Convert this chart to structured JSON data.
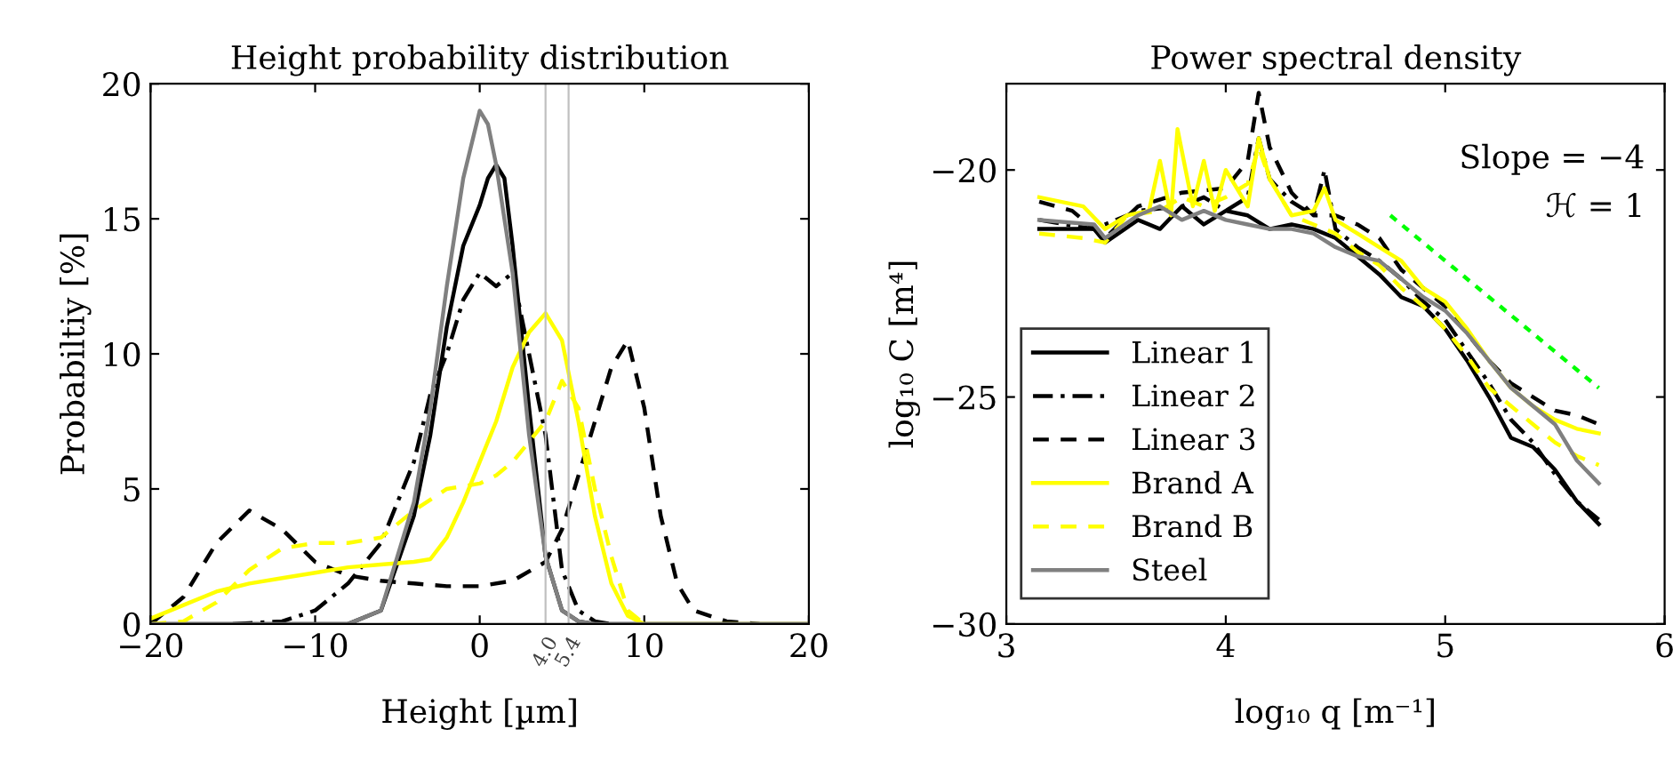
{
  "chart_data": [
    {
      "type": "line",
      "title": "Height probability distribution",
      "xlabel": "Height [µm]",
      "ylabel": "Probabiltiy [%]",
      "xlim": [
        -20,
        20
      ],
      "xticks": [
        {
          "value": -20,
          "label": "−20"
        },
        {
          "value": -10,
          "label": "−10"
        },
        0,
        10,
        20
      ],
      "ylim": [
        0,
        20
      ],
      "yticks": [
        0,
        5,
        10,
        15,
        20
      ],
      "grid": false,
      "legend": false,
      "ref_lines": [
        {
          "axis": "x",
          "value": 4.0,
          "label": "4.0",
          "color": "#c0c0c0"
        },
        {
          "axis": "x",
          "value": 5.4,
          "label": "5.4",
          "color": "#c0c0c0"
        }
      ],
      "series": [
        {
          "color": "#000000",
          "line_style": "solid",
          "x": [
            -20,
            -8,
            -6,
            -4,
            -3,
            -2,
            -1,
            0,
            0.5,
            1,
            1.5,
            2,
            3,
            4,
            5,
            6,
            7,
            20
          ],
          "values": [
            0,
            0,
            0.5,
            4,
            7,
            11,
            14,
            15.5,
            16.5,
            17,
            16.5,
            14,
            8,
            2.5,
            0.5,
            0.1,
            0,
            0
          ]
        },
        {
          "color": "#000000",
          "line_style": "dashdot",
          "x": [
            -15,
            -12,
            -10,
            -8,
            -6,
            -4,
            -3,
            -2,
            -1,
            0,
            1,
            2,
            3,
            4,
            5,
            6,
            7,
            8
          ],
          "values": [
            0,
            0.1,
            0.5,
            1.5,
            3,
            6,
            8.5,
            10,
            12,
            13,
            12.5,
            13,
            10,
            7,
            2,
            0.5,
            0.1,
            0
          ]
        },
        {
          "color": "#000000",
          "line_style": "dashed",
          "x": [
            -20,
            -18,
            -16,
            -14,
            -12,
            -10,
            -8,
            -6,
            -4,
            -2,
            0,
            2,
            4,
            5,
            6,
            7,
            8,
            9,
            10,
            11,
            12,
            13,
            15,
            17
          ],
          "values": [
            0,
            1,
            3,
            4.2,
            3.5,
            2.3,
            1.8,
            1.6,
            1.5,
            1.4,
            1.4,
            1.6,
            2.3,
            3.5,
            5.5,
            7.5,
            9.5,
            10.5,
            8,
            4,
            1.5,
            0.5,
            0.1,
            0
          ]
        },
        {
          "color": "#ffff00",
          "line_style": "solid",
          "x": [
            -20,
            -18,
            -16,
            -14,
            -12,
            -10,
            -8,
            -6,
            -4,
            -3,
            -2,
            -1,
            0,
            1,
            2,
            3,
            4,
            5,
            6,
            7,
            8,
            9,
            10,
            20
          ],
          "values": [
            0.2,
            0.7,
            1.2,
            1.5,
            1.7,
            1.9,
            2.1,
            2.2,
            2.3,
            2.4,
            3.2,
            4.5,
            6,
            7.5,
            9.5,
            10.8,
            11.5,
            10.5,
            7.5,
            4,
            1.5,
            0.3,
            0,
            0
          ]
        },
        {
          "color": "#ffff00",
          "line_style": "dashed",
          "x": [
            -20,
            -18,
            -16,
            -14,
            -12,
            -10,
            -8,
            -6,
            -4,
            -2,
            0,
            1,
            2,
            4,
            5,
            6,
            7,
            8,
            9,
            10
          ],
          "values": [
            0,
            0.1,
            0.8,
            2,
            2.8,
            3,
            3,
            3.2,
            4.2,
            5,
            5.2,
            5.5,
            6,
            7.5,
            9,
            8,
            5,
            2.5,
            0.5,
            0
          ]
        },
        {
          "color": "#808080",
          "line_style": "solid",
          "x": [
            -20,
            -8,
            -6,
            -4,
            -3,
            -2,
            -1,
            0,
            0.5,
            1,
            2,
            3,
            4,
            5,
            6,
            7,
            20
          ],
          "values": [
            0,
            0,
            0.5,
            4.5,
            8,
            12.5,
            16.5,
            19,
            18.5,
            17,
            13,
            7,
            2.5,
            0.5,
            0.1,
            0,
            0
          ]
        }
      ]
    },
    {
      "type": "line",
      "title": "Power spectral density",
      "xlabel": "log₁₀ q [m⁻¹]",
      "ylabel": "log₁₀ C [m⁴]",
      "xlim": [
        3,
        6
      ],
      "xticks": [
        3,
        4,
        5,
        6
      ],
      "ylim": [
        -30,
        -18.1
      ],
      "yticks": [
        {
          "value": -30,
          "label": "−30"
        },
        {
          "value": -25,
          "label": "−25"
        },
        {
          "value": -20,
          "label": "−20"
        }
      ],
      "grid": false,
      "legend": "lower left",
      "annotations": [
        "Slope = −4",
        "ℋ = 1"
      ],
      "series": [
        {
          "name": "Linear 1",
          "color": "#000000",
          "line_style": "solid",
          "x": [
            3.15,
            3.4,
            3.45,
            3.6,
            3.7,
            3.8,
            3.9,
            4.0,
            4.1,
            4.2,
            4.3,
            4.4,
            4.5,
            4.6,
            4.7,
            4.8,
            4.9,
            5.0,
            5.1,
            5.2,
            5.3,
            5.4,
            5.5,
            5.6,
            5.7
          ],
          "values": [
            -21.3,
            -21.3,
            -21.6,
            -21.1,
            -21.3,
            -20.8,
            -21.2,
            -20.9,
            -21.0,
            -21.3,
            -21.2,
            -21.3,
            -21.5,
            -21.9,
            -22.3,
            -22.8,
            -23.0,
            -23.5,
            -24.2,
            -25.0,
            -25.9,
            -26.1,
            -26.6,
            -27.3,
            -27.8
          ]
        },
        {
          "name": "Linear 2",
          "color": "#000000",
          "line_style": "dashdot",
          "x": [
            3.15,
            3.4,
            3.6,
            3.8,
            3.9,
            4.0,
            4.1,
            4.15,
            4.2,
            4.3,
            4.4,
            4.45,
            4.5,
            4.6,
            4.7,
            4.8,
            4.9,
            5.0,
            5.1,
            5.2,
            5.3,
            5.4,
            5.5,
            5.6,
            5.7
          ],
          "values": [
            -21.1,
            -21.3,
            -20.9,
            -20.8,
            -20.6,
            -20.9,
            -20.6,
            -19.3,
            -20.2,
            -20.7,
            -21.0,
            -20.0,
            -21.3,
            -21.7,
            -22.0,
            -22.4,
            -22.9,
            -23.3,
            -24.0,
            -24.7,
            -25.5,
            -26.0,
            -26.7,
            -27.3,
            -27.7
          ]
        },
        {
          "name": "Linear 3",
          "color": "#000000",
          "line_style": "dashed",
          "x": [
            3.15,
            3.3,
            3.45,
            3.6,
            3.8,
            4.0,
            4.1,
            4.15,
            4.2,
            4.3,
            4.4,
            4.5,
            4.6,
            4.7,
            4.8,
            4.9,
            5.0,
            5.1,
            5.2,
            5.3,
            5.4,
            5.5,
            5.6,
            5.7
          ],
          "values": [
            -20.7,
            -20.9,
            -21.5,
            -20.8,
            -20.5,
            -20.4,
            -19.8,
            -18.3,
            -19.5,
            -20.5,
            -21.0,
            -21.0,
            -21.2,
            -21.5,
            -22.2,
            -22.6,
            -23.0,
            -23.6,
            -24.2,
            -24.7,
            -25.0,
            -25.3,
            -25.4,
            -25.6
          ]
        },
        {
          "name": "Brand A",
          "color": "#ffff00",
          "line_style": "solid",
          "x": [
            3.15,
            3.35,
            3.45,
            3.55,
            3.65,
            3.7,
            3.75,
            3.78,
            3.85,
            3.9,
            3.95,
            4.0,
            4.1,
            4.15,
            4.2,
            4.3,
            4.4,
            4.45,
            4.5,
            4.6,
            4.7,
            4.8,
            4.9,
            5.0,
            5.1,
            5.2,
            5.3,
            5.4,
            5.5,
            5.6,
            5.7
          ],
          "values": [
            -20.6,
            -20.8,
            -21.3,
            -21.0,
            -20.9,
            -19.8,
            -21.0,
            -19.1,
            -20.8,
            -19.8,
            -20.9,
            -20.0,
            -20.8,
            -19.3,
            -20.2,
            -21.0,
            -20.9,
            -20.4,
            -21.1,
            -21.4,
            -21.7,
            -22.0,
            -22.6,
            -22.9,
            -23.5,
            -24.2,
            -24.8,
            -25.2,
            -25.5,
            -25.7,
            -25.8
          ]
        },
        {
          "name": "Brand B",
          "color": "#ffff00",
          "line_style": "dashed",
          "x": [
            3.15,
            3.35,
            3.45,
            3.55,
            3.7,
            3.8,
            3.9,
            4.0,
            4.1,
            4.15,
            4.2,
            4.3,
            4.4,
            4.5,
            4.6,
            4.7,
            4.8,
            4.9,
            5.0,
            5.1,
            5.2,
            5.3,
            5.4,
            5.5,
            5.6,
            5.7
          ],
          "values": [
            -21.4,
            -21.5,
            -21.6,
            -21.0,
            -20.9,
            -20.6,
            -20.8,
            -20.6,
            -20.3,
            -19.5,
            -20.2,
            -21.0,
            -21.2,
            -21.4,
            -21.8,
            -22.1,
            -22.6,
            -23.0,
            -23.5,
            -24.1,
            -24.8,
            -25.2,
            -25.6,
            -26.0,
            -26.3,
            -26.5
          ]
        },
        {
          "name": "Steel",
          "color": "#808080",
          "line_style": "solid",
          "x": [
            3.15,
            3.4,
            3.45,
            3.6,
            3.7,
            3.8,
            3.9,
            4.0,
            4.1,
            4.2,
            4.3,
            4.4,
            4.5,
            4.6,
            4.7,
            4.8,
            4.9,
            5.0,
            5.1,
            5.2,
            5.3,
            5.4,
            5.5,
            5.6,
            5.7
          ],
          "values": [
            -21.1,
            -21.2,
            -21.5,
            -21.0,
            -20.8,
            -21.1,
            -20.9,
            -21.1,
            -21.2,
            -21.3,
            -21.3,
            -21.4,
            -21.7,
            -21.9,
            -22.0,
            -22.4,
            -22.8,
            -23.1,
            -23.6,
            -24.2,
            -24.8,
            -25.2,
            -25.6,
            -26.4,
            -26.9
          ]
        },
        {
          "color": "#00ff00",
          "line_style": "dotted",
          "x": [
            4.75,
            5.7
          ],
          "values": [
            -21.0,
            -24.8
          ]
        }
      ]
    }
  ]
}
